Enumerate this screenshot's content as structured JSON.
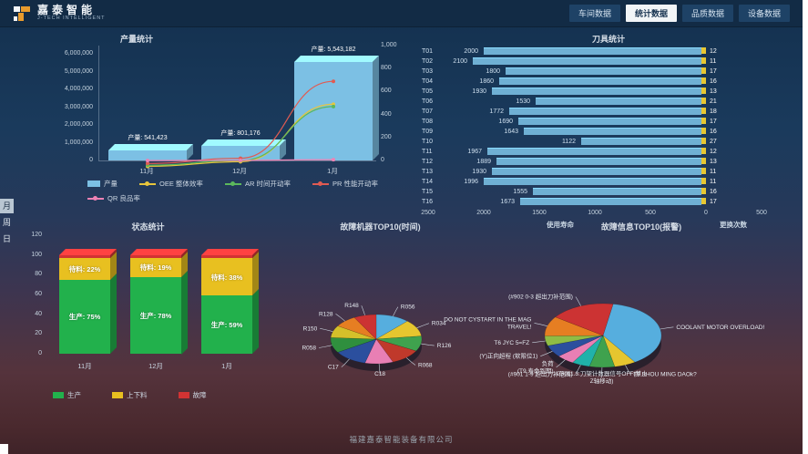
{
  "header": {
    "brand": {
      "name": "嘉泰智能",
      "subtitle": "J-TECH INTELLIGENT"
    },
    "nav": [
      {
        "label": "车间数据",
        "active": false
      },
      {
        "label": "统计数据",
        "active": true
      },
      {
        "label": "品质数据",
        "active": false
      },
      {
        "label": "设备数据",
        "active": false
      }
    ]
  },
  "side_tabs": [
    {
      "label": "月",
      "active": true
    },
    {
      "label": "周",
      "active": false
    },
    {
      "label": "日",
      "active": false
    }
  ],
  "footer": {
    "company": "福建嘉泰智能装备有限公司"
  },
  "colors": {
    "header_bg": "#122b45",
    "accent_orange": "#e89b2d",
    "bar_blue": "#7cc0e4",
    "tool_bar_blue": "#6fb0d4",
    "tool_bar_yellow": "#e8c832",
    "status_green": "#22b14c",
    "status_yellow": "#e8c020",
    "status_red": "#d23333"
  },
  "chart_data": [
    {
      "id": "production",
      "type": "bar",
      "title": "产量统计",
      "categories": [
        "11月",
        "12月",
        "1月"
      ],
      "bar_series": {
        "name": "产量",
        "color": "#7cc0e4",
        "values": [
          541423,
          801176,
          5543182
        ],
        "labels": [
          "产量: 541,423",
          "产量: 801,176",
          "产量: 5,543,182"
        ]
      },
      "left_axis": {
        "ticks": [
          "0",
          "1,000,000",
          "2,000,000",
          "3,000,000",
          "4,000,000",
          "5,000,000",
          "6,000,000"
        ],
        "max": 6500000
      },
      "right_axis": {
        "ticks": [
          "0",
          "200",
          "400",
          "600",
          "800",
          "1,000"
        ],
        "max": 1000
      },
      "line_series": [
        {
          "name": "OEE 整体效率",
          "color": "#e8c63c",
          "values": [
            60,
            100,
            600
          ]
        },
        {
          "name": "AR 时间开动率",
          "color": "#5cb85c",
          "values": [
            70,
            110,
            580
          ]
        },
        {
          "name": "PR 性能开动率",
          "color": "#e05b52",
          "values": [
            85,
            130,
            800
          ]
        },
        {
          "name": "QR 良品率",
          "color": "#ee82b4",
          "values": [
            110,
            112,
            118
          ]
        }
      ],
      "legend": [
        "产量",
        "OEE 整体效率",
        "AR 时间开动率",
        "PR 性能开动率",
        "QR 良品率"
      ]
    },
    {
      "id": "tools",
      "type": "bar",
      "orientation": "horizontal",
      "title": "刀具统计",
      "categories": [
        "T01",
        "T02",
        "T03",
        "T04",
        "T05",
        "T06",
        "T07",
        "T08",
        "T09",
        "T10",
        "T11",
        "T12",
        "T13",
        "T14",
        "T15",
        "T16"
      ],
      "series": [
        {
          "name": "使用寿命",
          "color": "#6fb0d4",
          "values": [
            2000,
            2100,
            1800,
            1860,
            1930,
            1530,
            1772,
            1690,
            1643,
            1122,
            1967,
            1889,
            1930,
            1996,
            1555,
            1673
          ]
        },
        {
          "name": "更换次数",
          "color": "#e8c832",
          "values": [
            12,
            11,
            17,
            16,
            13,
            21,
            18,
            17,
            16,
            27,
            12,
            13,
            11,
            11,
            16,
            17
          ]
        }
      ],
      "x_axis": {
        "ticks": [
          "2500",
          "2000",
          "1500",
          "1000",
          "500",
          "0",
          "500"
        ],
        "left_max": 2500,
        "right_max": 500
      },
      "axis_labels": {
        "left": "使用寿命",
        "right": "更换次数"
      }
    },
    {
      "id": "status",
      "type": "bar",
      "stacked": true,
      "title": "状态统计",
      "categories": [
        "11月",
        "12月",
        "1月"
      ],
      "series": [
        {
          "name": "生产",
          "color": "#22b14c",
          "values": [
            75,
            78,
            59
          ],
          "labels": [
            "生产: 75%",
            "生产: 78%",
            "生产: 59%"
          ]
        },
        {
          "name": "上下料",
          "color": "#e8c020",
          "values": [
            22,
            19,
            38
          ],
          "labels": [
            "待料: 22%",
            "待料: 19%",
            "待料: 38%"
          ]
        },
        {
          "name": "故障",
          "color": "#d23333",
          "values": [
            3,
            3,
            3
          ],
          "labels": [
            "",
            "",
            ""
          ]
        }
      ],
      "y_axis": {
        "ticks": [
          "0",
          "20",
          "40",
          "60",
          "80",
          "100",
          "120"
        ],
        "max": 120
      },
      "legend": [
        "生产",
        "上下料",
        "故障"
      ]
    },
    {
      "id": "fault-machines",
      "type": "pie",
      "title": "故障机器TOP10(时间)",
      "start_angle": -90,
      "slices": [
        {
          "label": "R056",
          "value": 12,
          "color": "#56aede"
        },
        {
          "label": "R034",
          "value": 11,
          "color": "#e6c62f"
        },
        {
          "label": "R126",
          "value": 10,
          "color": "#3fa24e"
        },
        {
          "label": "R068",
          "value": 11,
          "color": "#c0392b"
        },
        {
          "label": "C18",
          "value": 10,
          "color": "#e87fb4"
        },
        {
          "label": "C17",
          "value": 12,
          "color": "#2b4f9e"
        },
        {
          "label": "R058",
          "value": 10,
          "color": "#2f8f3e"
        },
        {
          "label": "R150",
          "value": 8,
          "color": "#d4c02a"
        },
        {
          "label": "R128",
          "value": 8,
          "color": "#e67e22"
        },
        {
          "label": "R148",
          "value": 8,
          "color": "#cc3333"
        }
      ]
    },
    {
      "id": "fault-alarms",
      "type": "pie",
      "title": "故障信息TOP10(报警)",
      "start_angle": -80,
      "slices": [
        {
          "label": "COOLANT MOTOR OVERLOAD!",
          "value": 38,
          "color": "#56aede"
        },
        {
          "label": "T9 SHOU MING DAOk?",
          "value": 6,
          "color": "#e6c62f"
        },
        {
          "label": "G3011.3:刀架计数器信号OFF(禁止\nZ轴移动)",
          "value": 7,
          "color": "#3fa24e"
        },
        {
          "label": "(#901 1-9 超出刀补范围)",
          "value": 5,
          "color": "#20b2aa"
        },
        {
          "label": "负荷\n(T9 寿命到期)",
          "value": 5,
          "color": "#e87fb4"
        },
        {
          "label": "(Y)正向超程 (软限位1)",
          "value": 6,
          "color": "#2b4f9e"
        },
        {
          "label": "T6 JYC 5=FZ",
          "value": 5,
          "color": "#8fbc45"
        },
        {
          "label": "DO NOT CYSTART IN THE MAG\nTRAVEL!",
          "value": 10,
          "color": "#e67e22"
        },
        {
          "label": "(#902 0-3 超出刀补范围)",
          "value": 18,
          "color": "#cc3333"
        }
      ]
    }
  ]
}
